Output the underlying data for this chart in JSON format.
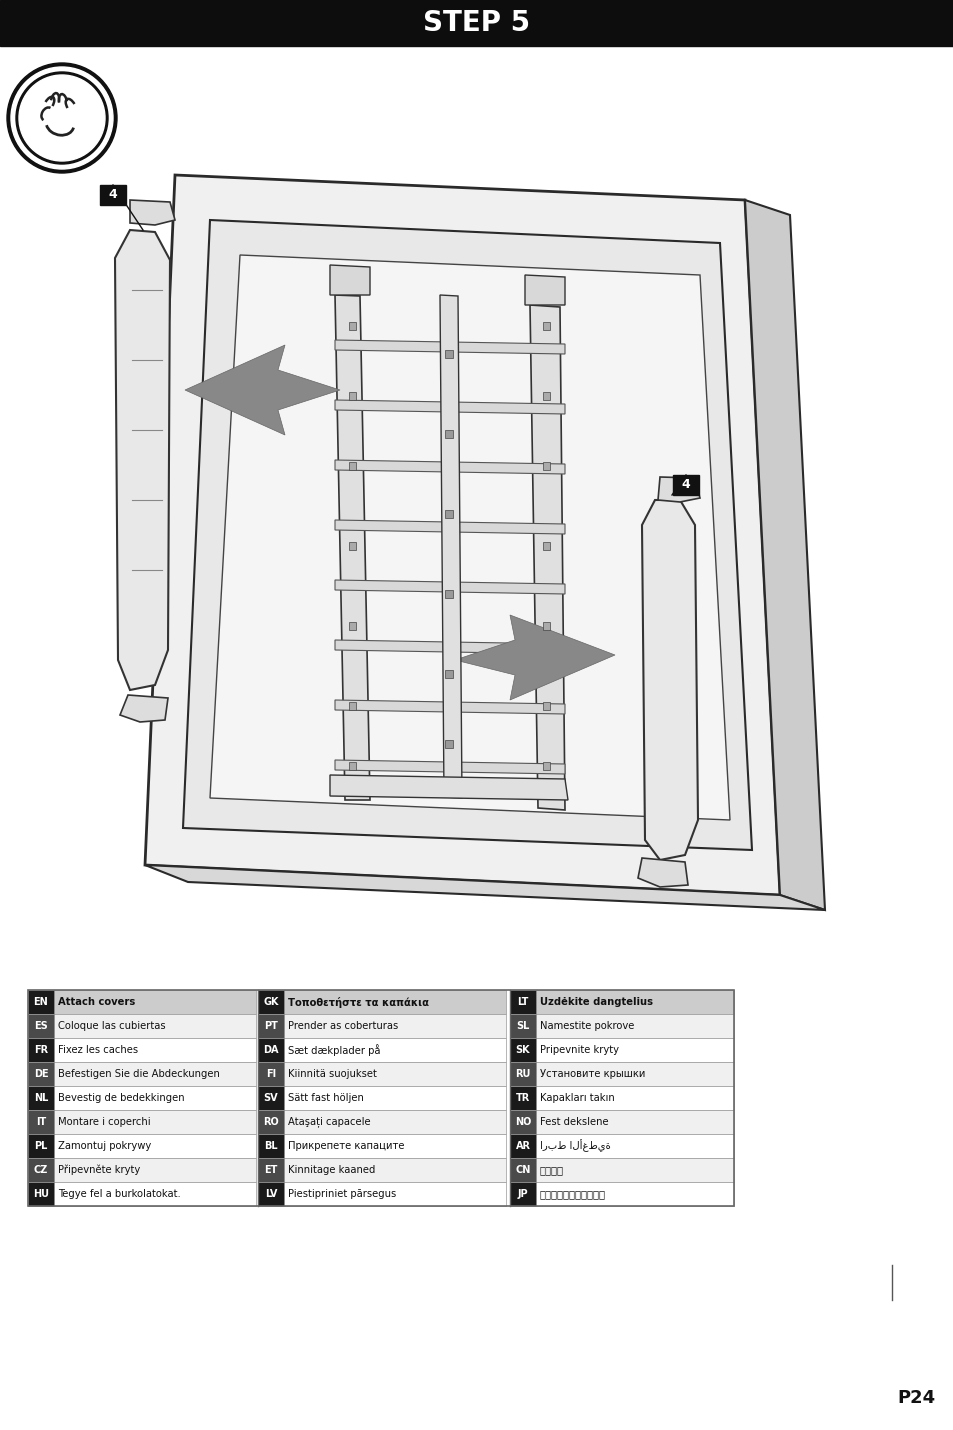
{
  "title": "STEP 5",
  "page_num": "P24",
  "bg_color": "#ffffff",
  "header_bg": "#0d0d0d",
  "header_text_color": "#ffffff",
  "table_entries": [
    [
      "EN",
      "Attach covers",
      "GK",
      "Τοποθετήστε τα καπάκια",
      "LT",
      "Uzdėkite dangtelius"
    ],
    [
      "ES",
      "Coloque las cubiertas",
      "PT",
      "Prender as coberturas",
      "SL",
      "Namestite pokrove"
    ],
    [
      "FR",
      "Fixez les caches",
      "DA",
      "Sæt dækplader på",
      "SK",
      "Pripevnite kryty"
    ],
    [
      "DE",
      "Befestigen Sie die Abdeckungen",
      "FI",
      "Kiinnitä suojukset",
      "RU",
      "Установите крышки"
    ],
    [
      "NL",
      "Bevestig de bedekkingen",
      "SV",
      "Sätt fast höljen",
      "TR",
      "Kapakları takın"
    ],
    [
      "IT",
      "Montare i coperchi",
      "RO",
      "Ataşați capacele",
      "NO",
      "Fest dekslene"
    ],
    [
      "PL",
      "Zamontuj pokrywy",
      "BL",
      "Прикрепете капаците",
      "AR",
      "اربط الأغطية"
    ],
    [
      "CZ",
      "Připevněte kryty",
      "ET",
      "Kinnitage kaaned",
      "CN",
      "连接外盖"
    ],
    [
      "HU",
      "Tegye fel a burkolatokat.",
      "LV",
      "Piestipriniet pārsegus",
      "JP",
      "カバーを取り付けます。"
    ]
  ]
}
